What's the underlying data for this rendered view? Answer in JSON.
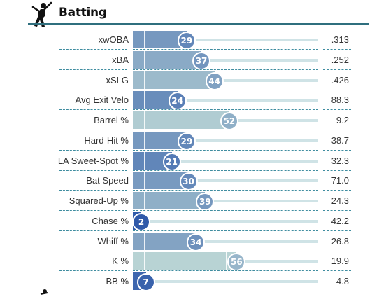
{
  "section": {
    "title": "Batting",
    "icon": "batter-icon"
  },
  "colors": {
    "rule": "#2f6f7e",
    "divider": "#3f8da0",
    "track": "#cfe3e6",
    "low": "#2c56a8",
    "high": "#b8d3d4"
  },
  "rows": [
    {
      "label": "xwOBA",
      "percentile": "29",
      "value": ".313"
    },
    {
      "label": "xBA",
      "percentile": "37",
      "value": ".252"
    },
    {
      "label": "xSLG",
      "percentile": "44",
      "value": ".426"
    },
    {
      "label": "Avg Exit Velo",
      "percentile": "24",
      "value": "88.3"
    },
    {
      "label": "Barrel %",
      "percentile": "52",
      "value": "9.2"
    },
    {
      "label": "Hard-Hit %",
      "percentile": "29",
      "value": "38.7"
    },
    {
      "label": "LA Sweet-Spot %",
      "percentile": "21",
      "value": "32.3"
    },
    {
      "label": "Bat Speed",
      "percentile": "30",
      "value": "71.0"
    },
    {
      "label": "Squared-Up %",
      "percentile": "39",
      "value": "24.3"
    },
    {
      "label": "Chase %",
      "percentile": "2",
      "value": "42.2"
    },
    {
      "label": "Whiff %",
      "percentile": "34",
      "value": "26.8"
    },
    {
      "label": "K %",
      "percentile": "56",
      "value": "19.9"
    },
    {
      "label": "BB %",
      "percentile": "7",
      "value": "4.8"
    }
  ]
}
